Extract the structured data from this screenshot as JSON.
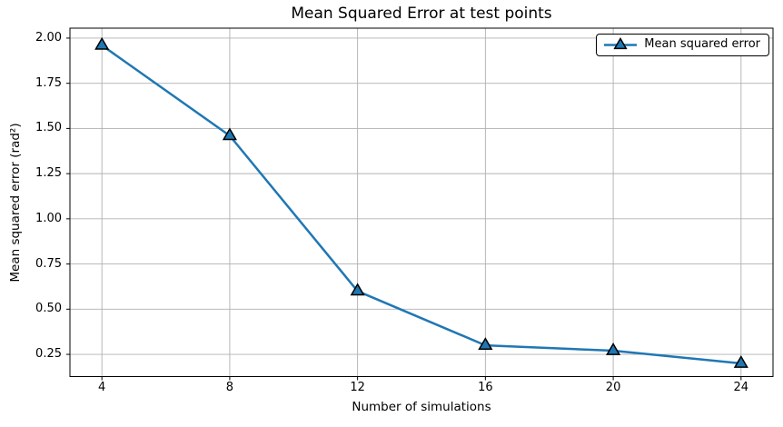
{
  "chart_data": {
    "type": "line",
    "title": "Mean Squared Error at test points",
    "xlabel": "Number of simulations",
    "ylabel": "Mean squared error (rad²)",
    "x": [
      4,
      8,
      12,
      16,
      20,
      24
    ],
    "series": [
      {
        "name": "Mean squared error",
        "values": [
          1.96,
          1.46,
          0.6,
          0.3,
          0.27,
          0.2
        ],
        "color": "#1f77b4",
        "marker": "triangle-up",
        "marker_face": "#1f77b4",
        "marker_edge": "#000000"
      }
    ],
    "xticks": [
      "4",
      "8",
      "12",
      "16",
      "20",
      "24"
    ],
    "yticks": [
      "0.25",
      "0.50",
      "0.75",
      "1.00",
      "1.25",
      "1.50",
      "1.75",
      "2.00"
    ],
    "xlim": [
      3,
      25
    ],
    "ylim": [
      0.127,
      2.055
    ],
    "grid": true,
    "legend_position": "upper right",
    "colors": {
      "grid": "#b0b0b0",
      "axes": "#000000",
      "background": "#ffffff"
    }
  }
}
